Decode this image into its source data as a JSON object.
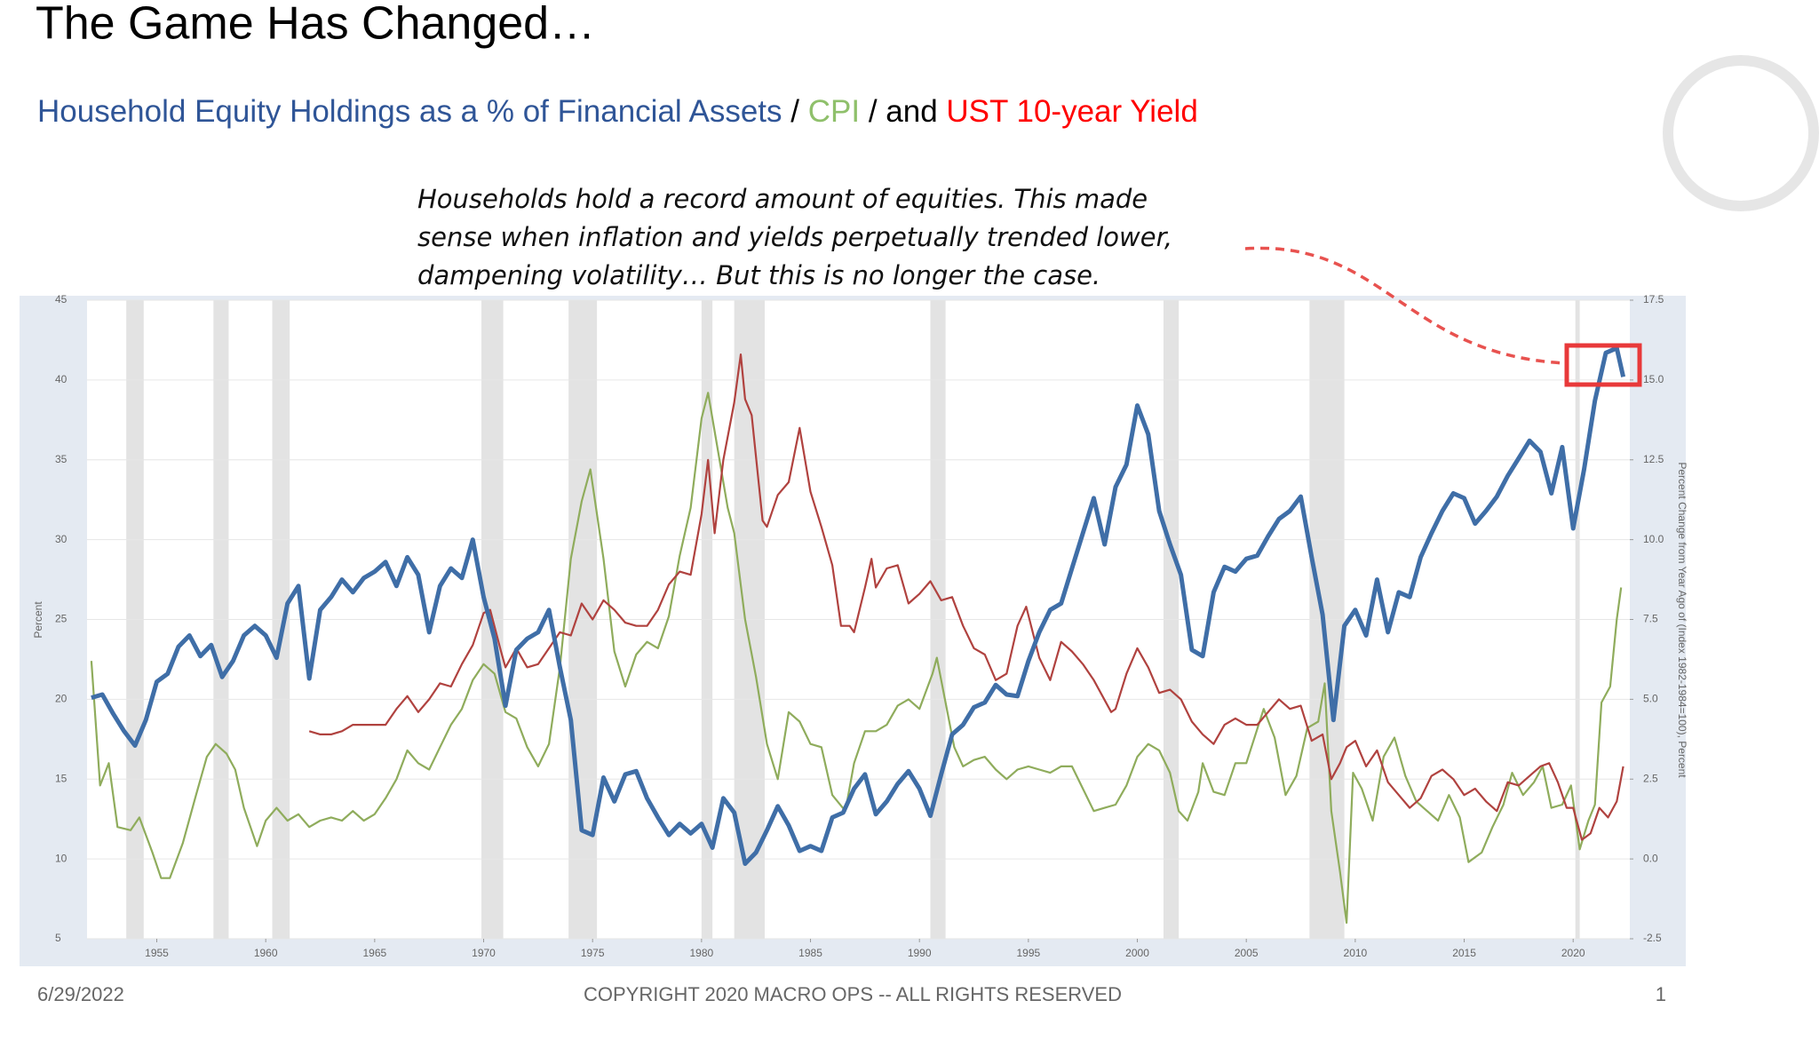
{
  "title": "The Game Has Changed…",
  "subtitle_joins": [
    "/",
    "/ and"
  ],
  "annotation": [
    "Households hold a record amount of equities. This made",
    "sense when inflation and yields perpetually trended lower,",
    "dampening volatility… But this is no longer the case."
  ],
  "footer": {
    "date": "6/29/2022",
    "copyright": "COPYRIGHT 2020 MACRO OPS -- ALL RIGHTS RESERVED",
    "page": "1"
  },
  "chart_data": {
    "type": "line",
    "y_label": "Percent",
    "y2_label": "Percent Change from Year Ago of (Index 1982-1984=100), Percent",
    "xlim": [
      1951.8,
      2022.6
    ],
    "xticks": [
      1955,
      1960,
      1965,
      1970,
      1975,
      1980,
      1985,
      1990,
      1995,
      2000,
      2005,
      2010,
      2015,
      2020
    ],
    "ylim": [
      5,
      45
    ],
    "yticks": [
      5,
      10,
      15,
      20,
      25,
      30,
      35,
      40,
      45
    ],
    "y2lim": [
      -2.5,
      17.5
    ],
    "y2ticks": [
      -2.5,
      {
        "value": 0,
        "label": "0.0"
      },
      2.5,
      {
        "value": 5,
        "label": "5.0"
      },
      7.5,
      {
        "value": 10,
        "label": "10.0"
      },
      12.5,
      {
        "value": 15,
        "label": "15.0"
      },
      17.5
    ],
    "grid": true,
    "recession_color": "#e3e3e3",
    "recessions": [
      [
        1953.6,
        1954.4
      ],
      [
        1957.6,
        1958.3
      ],
      [
        1960.3,
        1961.1
      ],
      [
        1969.9,
        1970.9
      ],
      [
        1973.9,
        1975.2
      ],
      [
        1980.0,
        1980.5
      ],
      [
        1981.5,
        1982.9
      ],
      [
        1990.5,
        1991.2
      ],
      [
        2001.2,
        2001.9
      ],
      [
        2007.9,
        2009.5
      ],
      [
        2020.1,
        2020.3
      ]
    ],
    "series": [
      {
        "name": "CPI",
        "color": "#8fac5c",
        "axis": "y2",
        "x": [
          1952.0,
          1952.4,
          1952.8,
          1953.2,
          1953.8,
          1954.2,
          1954.8,
          1955.2,
          1955.6,
          1956.2,
          1956.8,
          1957.3,
          1957.7,
          1958.2,
          1958.6,
          1959.0,
          1959.6,
          1960.0,
          1960.5,
          1961.0,
          1961.5,
          1962.0,
          1962.5,
          1963.0,
          1963.5,
          1964.0,
          1964.5,
          1965.0,
          1965.5,
          1966.0,
          1966.5,
          1967.0,
          1967.5,
          1968.0,
          1968.5,
          1969.0,
          1969.5,
          1970.0,
          1970.5,
          1971.0,
          1971.5,
          1972.0,
          1972.5,
          1973.0,
          1973.5,
          1974.0,
          1974.5,
          1974.9,
          1975.5,
          1976.0,
          1976.5,
          1977.0,
          1977.5,
          1978.0,
          1978.5,
          1979.0,
          1979.5,
          1980.0,
          1980.3,
          1980.8,
          1981.2,
          1981.5,
          1982.0,
          1982.5,
          1983.0,
          1983.5,
          1984.0,
          1984.5,
          1985.0,
          1985.5,
          1986.0,
          1986.6,
          1987.0,
          1987.5,
          1988.0,
          1988.5,
          1989.0,
          1989.5,
          1990.0,
          1990.6,
          1990.8,
          1991.2,
          1991.6,
          1992.0,
          1992.5,
          1993.0,
          1993.5,
          1994.0,
          1994.5,
          1995.0,
          1995.5,
          1996.0,
          1996.5,
          1997.0,
          1997.5,
          1998.0,
          1998.5,
          1999.0,
          1999.5,
          2000.0,
          2000.5,
          2001.0,
          2001.5,
          2001.9,
          2002.3,
          2002.8,
          2003.0,
          2003.5,
          2004.0,
          2004.5,
          2005.0,
          2005.8,
          2006.3,
          2006.8,
          2007.3,
          2007.8,
          2008.3,
          2008.6,
          2008.9,
          2009.3,
          2009.6,
          2009.9,
          2010.3,
          2010.8,
          2011.3,
          2011.8,
          2012.3,
          2012.8,
          2013.3,
          2013.8,
          2014.3,
          2014.8,
          2015.2,
          2015.8,
          2016.3,
          2016.8,
          2017.2,
          2017.7,
          2018.2,
          2018.6,
          2019.0,
          2019.5,
          2019.9,
          2020.3,
          2020.7,
          2021.0,
          2021.3,
          2021.7,
          2022.0,
          2022.2
        ],
        "values": [
          6.2,
          2.3,
          3.0,
          1.0,
          0.9,
          1.3,
          0.2,
          -0.6,
          -0.6,
          0.5,
          2.0,
          3.2,
          3.6,
          3.3,
          2.8,
          1.6,
          0.4,
          1.2,
          1.6,
          1.2,
          1.4,
          1.0,
          1.2,
          1.3,
          1.2,
          1.5,
          1.2,
          1.4,
          1.9,
          2.5,
          3.4,
          3.0,
          2.8,
          3.5,
          4.2,
          4.7,
          5.6,
          6.1,
          5.8,
          4.6,
          4.4,
          3.5,
          2.9,
          3.6,
          6.0,
          9.4,
          11.2,
          12.2,
          9.4,
          6.5,
          5.4,
          6.4,
          6.8,
          6.6,
          7.6,
          9.5,
          11.0,
          13.8,
          14.6,
          12.6,
          11.0,
          10.2,
          7.5,
          5.7,
          3.6,
          2.5,
          4.6,
          4.3,
          3.6,
          3.5,
          2.0,
          1.5,
          3.0,
          4.0,
          4.0,
          4.2,
          4.8,
          5.0,
          4.7,
          5.8,
          6.3,
          4.9,
          3.5,
          2.9,
          3.1,
          3.2,
          2.8,
          2.5,
          2.8,
          2.9,
          2.8,
          2.7,
          2.9,
          2.9,
          2.2,
          1.5,
          1.6,
          1.7,
          2.3,
          3.2,
          3.6,
          3.4,
          2.7,
          1.5,
          1.2,
          2.1,
          3.0,
          2.1,
          2.0,
          3.0,
          3.0,
          4.7,
          3.8,
          2.0,
          2.6,
          4.1,
          4.3,
          5.5,
          1.5,
          -0.4,
          -2.0,
          2.7,
          2.2,
          1.2,
          3.2,
          3.8,
          2.6,
          1.8,
          1.5,
          1.2,
          2.0,
          1.3,
          -0.1,
          0.2,
          1.0,
          1.7,
          2.7,
          2.0,
          2.4,
          2.9,
          1.6,
          1.7,
          2.3,
          0.3,
          1.2,
          1.7,
          4.9,
          5.4,
          7.5,
          8.5
        ]
      },
      {
        "name": "UST 10-year Yield",
        "color": "#b0423f",
        "axis": "y2",
        "x": [
          1962.0,
          1962.5,
          1963.0,
          1963.5,
          1964.0,
          1964.5,
          1965.0,
          1965.5,
          1966.0,
          1966.5,
          1967.0,
          1967.5,
          1968.0,
          1968.5,
          1969.0,
          1969.5,
          1970.0,
          1970.3,
          1970.8,
          1971.0,
          1971.5,
          1972.0,
          1972.5,
          1973.0,
          1973.5,
          1974.0,
          1974.5,
          1975.0,
          1975.5,
          1976.0,
          1976.5,
          1977.0,
          1977.5,
          1978.0,
          1978.5,
          1979.0,
          1979.5,
          1980.0,
          1980.3,
          1980.6,
          1981.0,
          1981.5,
          1981.8,
          1982.0,
          1982.3,
          1982.8,
          1983.0,
          1983.5,
          1984.0,
          1984.5,
          1985.0,
          1985.5,
          1986.0,
          1986.4,
          1986.8,
          1987.0,
          1987.5,
          1987.8,
          1988.0,
          1988.5,
          1989.0,
          1989.5,
          1990.0,
          1990.5,
          1991.0,
          1991.5,
          1992.0,
          1992.5,
          1993.0,
          1993.5,
          1994.0,
          1994.5,
          1994.9,
          1995.5,
          1996.0,
          1996.5,
          1997.0,
          1997.5,
          1998.0,
          1998.8,
          1999.0,
          1999.5,
          2000.0,
          2000.5,
          2001.0,
          2001.5,
          2002.0,
          2002.5,
          2003.0,
          2003.5,
          2004.0,
          2004.5,
          2005.0,
          2005.5,
          2006.0,
          2006.5,
          2007.0,
          2007.5,
          2008.0,
          2008.5,
          2008.9,
          2009.3,
          2009.6,
          2010.0,
          2010.5,
          2011.0,
          2011.5,
          2012.0,
          2012.5,
          2013.0,
          2013.5,
          2014.0,
          2014.5,
          2015.0,
          2015.5,
          2016.0,
          2016.5,
          2017.0,
          2017.5,
          2018.0,
          2018.5,
          2018.9,
          2019.3,
          2019.7,
          2020.0,
          2020.4,
          2020.8,
          2021.2,
          2021.6,
          2022.0,
          2022.3
        ],
        "values": [
          4.0,
          3.9,
          3.9,
          4.0,
          4.2,
          4.2,
          4.2,
          4.2,
          4.7,
          5.1,
          4.6,
          5.0,
          5.5,
          5.4,
          6.1,
          6.7,
          7.7,
          7.8,
          6.5,
          6.0,
          6.6,
          6.0,
          6.1,
          6.6,
          7.1,
          7.0,
          8.0,
          7.5,
          8.1,
          7.8,
          7.4,
          7.3,
          7.3,
          7.8,
          8.6,
          9.0,
          8.9,
          10.8,
          12.5,
          10.2,
          12.5,
          14.3,
          15.8,
          14.4,
          13.9,
          10.6,
          10.4,
          11.4,
          11.8,
          13.5,
          11.5,
          10.4,
          9.2,
          7.3,
          7.3,
          7.1,
          8.5,
          9.4,
          8.5,
          9.1,
          9.2,
          8.0,
          8.3,
          8.7,
          8.1,
          8.2,
          7.3,
          6.6,
          6.4,
          5.6,
          5.8,
          7.3,
          7.9,
          6.3,
          5.6,
          6.8,
          6.5,
          6.1,
          5.6,
          4.6,
          4.7,
          5.8,
          6.6,
          6.0,
          5.2,
          5.3,
          5.0,
          4.3,
          3.9,
          3.6,
          4.2,
          4.4,
          4.2,
          4.2,
          4.6,
          5.0,
          4.7,
          4.8,
          3.7,
          3.9,
          2.5,
          3.0,
          3.5,
          3.7,
          2.9,
          3.4,
          2.4,
          2.0,
          1.6,
          1.9,
          2.6,
          2.8,
          2.5,
          2.0,
          2.2,
          1.8,
          1.5,
          2.4,
          2.3,
          2.6,
          2.9,
          3.0,
          2.4,
          1.6,
          1.6,
          0.6,
          0.8,
          1.6,
          1.3,
          1.8,
          2.9
        ]
      },
      {
        "name": "Household Equity Holdings as a % of Financial Assets",
        "color": "#3f6ea7",
        "axis": "y",
        "x": [
          1952.0,
          1952.5,
          1953.0,
          1953.5,
          1954.0,
          1954.5,
          1955.0,
          1955.5,
          1956.0,
          1956.5,
          1957.0,
          1957.5,
          1958.0,
          1958.5,
          1959.0,
          1959.5,
          1960.0,
          1960.5,
          1961.0,
          1961.5,
          1962.0,
          1962.5,
          1963.0,
          1963.5,
          1964.0,
          1964.5,
          1965.0,
          1965.5,
          1966.0,
          1966.5,
          1967.0,
          1967.5,
          1968.0,
          1968.5,
          1969.0,
          1969.5,
          1970.0,
          1970.5,
          1971.0,
          1971.5,
          1972.0,
          1972.5,
          1973.0,
          1973.5,
          1974.0,
          1974.5,
          1975.0,
          1975.5,
          1976.0,
          1976.5,
          1977.0,
          1977.5,
          1978.0,
          1978.5,
          1979.0,
          1979.5,
          1980.0,
          1980.5,
          1981.0,
          1981.5,
          1982.0,
          1982.5,
          1983.0,
          1983.5,
          1984.0,
          1984.5,
          1985.0,
          1985.5,
          1986.0,
          1986.5,
          1987.0,
          1987.5,
          1988.0,
          1988.5,
          1989.0,
          1989.5,
          1990.0,
          1990.5,
          1991.0,
          1991.5,
          1992.0,
          1992.5,
          1993.0,
          1993.5,
          1994.0,
          1994.5,
          1995.0,
          1995.5,
          1996.0,
          1996.5,
          1997.0,
          1997.5,
          1998.0,
          1998.5,
          1999.0,
          1999.5,
          2000.0,
          2000.5,
          2001.0,
          2001.5,
          2002.0,
          2002.5,
          2003.0,
          2003.5,
          2004.0,
          2004.5,
          2005.0,
          2005.5,
          2006.0,
          2006.5,
          2007.0,
          2007.5,
          2008.0,
          2008.5,
          2009.0,
          2009.5,
          2010.0,
          2010.5,
          2011.0,
          2011.5,
          2012.0,
          2012.5,
          2013.0,
          2013.5,
          2014.0,
          2014.5,
          2015.0,
          2015.5,
          2016.0,
          2016.5,
          2017.0,
          2017.5,
          2018.0,
          2018.5,
          2019.0,
          2019.5,
          2020.0,
          2020.5,
          2021.0,
          2021.5,
          2022.0,
          2022.3
        ],
        "values": [
          20.1,
          20.3,
          19.1,
          18.0,
          17.1,
          18.7,
          21.1,
          21.6,
          23.3,
          24.0,
          22.7,
          23.4,
          21.4,
          22.4,
          24.0,
          24.6,
          24.0,
          22.6,
          26.0,
          27.1,
          21.3,
          25.6,
          26.4,
          27.5,
          26.7,
          27.6,
          28.0,
          28.6,
          27.1,
          28.9,
          27.8,
          24.2,
          27.1,
          28.2,
          27.6,
          30.0,
          26.4,
          23.8,
          19.6,
          23.1,
          23.8,
          24.2,
          25.6,
          22.0,
          18.7,
          11.8,
          11.5,
          15.1,
          13.6,
          15.3,
          15.5,
          13.8,
          12.6,
          11.5,
          12.2,
          11.6,
          12.2,
          10.7,
          13.8,
          12.9,
          9.7,
          10.4,
          11.8,
          13.3,
          12.1,
          10.5,
          10.8,
          10.5,
          12.6,
          12.9,
          14.4,
          15.3,
          12.8,
          13.6,
          14.7,
          15.5,
          14.4,
          12.7,
          15.3,
          17.8,
          18.4,
          19.5,
          19.8,
          20.9,
          20.3,
          20.2,
          22.4,
          24.2,
          25.6,
          26.0,
          28.2,
          30.4,
          32.6,
          29.7,
          33.3,
          34.7,
          38.4,
          36.6,
          31.8,
          29.7,
          27.8,
          23.1,
          22.7,
          26.7,
          28.3,
          28.0,
          28.8,
          29.0,
          30.2,
          31.3,
          31.8,
          32.7,
          28.9,
          25.3,
          18.7,
          24.6,
          25.6,
          24.0,
          27.5,
          24.2,
          26.7,
          26.4,
          28.9,
          30.4,
          31.8,
          32.9,
          32.6,
          31.0,
          31.8,
          32.7,
          34.0,
          35.1,
          36.2,
          35.5,
          32.9,
          35.8,
          30.7,
          34.4,
          38.7,
          41.7,
          42.0,
          40.2
        ]
      }
    ]
  }
}
